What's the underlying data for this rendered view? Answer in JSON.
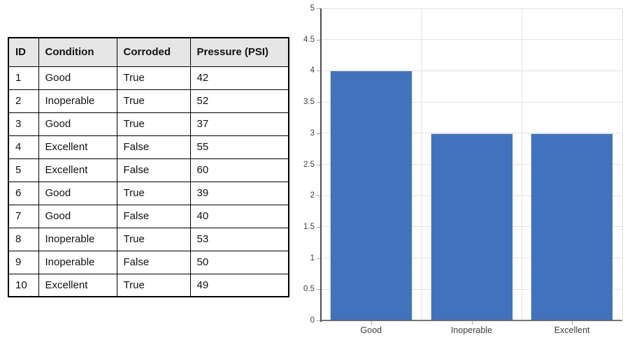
{
  "table": {
    "columns": [
      "ID",
      "Condition",
      "Corroded",
      "Pressure (PSI)"
    ],
    "rows": [
      [
        "1",
        "Good",
        "True",
        "42"
      ],
      [
        "2",
        "Inoperable",
        "True",
        "52"
      ],
      [
        "3",
        "Good",
        "True",
        "37"
      ],
      [
        "4",
        "Excellent",
        "False",
        "55"
      ],
      [
        "5",
        "Excellent",
        "False",
        "60"
      ],
      [
        "6",
        "Good",
        "True",
        "39"
      ],
      [
        "7",
        "Good",
        "False",
        "40"
      ],
      [
        "8",
        "Inoperable",
        "True",
        "53"
      ],
      [
        "9",
        "Inoperable",
        "False",
        "50"
      ],
      [
        "10",
        "Excellent",
        "True",
        "49"
      ]
    ]
  },
  "chart_data": {
    "type": "bar",
    "categories": [
      "Good",
      "Inoperable",
      "Excellent"
    ],
    "values": [
      4,
      3,
      3
    ],
    "title": "",
    "xlabel": "",
    "ylabel": "",
    "ylim": [
      0,
      5
    ],
    "y_ticks": [
      0,
      0.5,
      1,
      1.5,
      2,
      2.5,
      3,
      3.5,
      4,
      4.5,
      5
    ],
    "grid": true,
    "legend": false
  },
  "colors": {
    "bar_fill": "#4272BB",
    "bar_edge": "#D8E1EF",
    "grid_line": "#E2E2E2",
    "y_axis_line": "#4D4D4D",
    "x_axis_line": "#5E5E5E",
    "tick_mark": "#A6A6A6",
    "tick_label": "#3F3F3F",
    "table_border": "#000000",
    "table_header_bg": "#E7E6E6",
    "table_text": "#111111"
  }
}
